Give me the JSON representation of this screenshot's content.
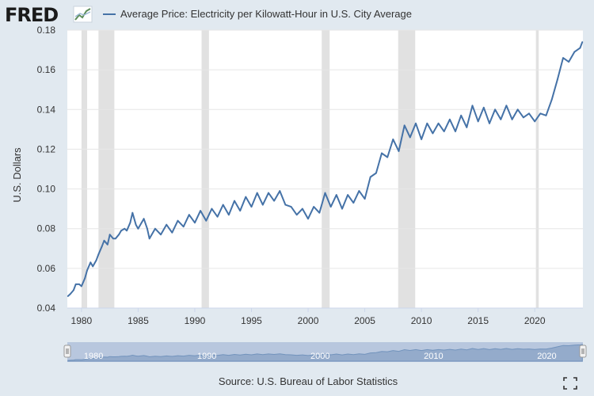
{
  "brand": {
    "logo_text": "FRED"
  },
  "legend": {
    "label": "Average Price: Electricity per Kilowatt-Hour in U.S. City Average"
  },
  "source": {
    "label": "Source: U.S. Bureau of Labor Statistics"
  },
  "navigator": {
    "tick_labels": [
      "1980",
      "1990",
      "2000",
      "2010",
      "2020"
    ]
  },
  "colors": {
    "series": "#4572a7",
    "background": "#e1e9f0",
    "plot_background": "#ffffff",
    "recession": "#e1e1e1",
    "navigator": "#afc0d9"
  },
  "icons": {
    "expand": "fullscreen-icon",
    "handles": "navigator-handle-icon"
  },
  "chart_data": {
    "type": "line",
    "title": "Average Price: Electricity per Kilowatt-Hour in U.S. City Average",
    "xlabel": "",
    "ylabel": "U.S. Dollars",
    "xlim": [
      1978.75,
      2024.25
    ],
    "ylim": [
      0.04,
      0.18
    ],
    "x_ticks": [
      1980,
      1985,
      1990,
      1995,
      2000,
      2005,
      2010,
      2015,
      2020
    ],
    "y_ticks": [
      "0.04",
      "0.06",
      "0.08",
      "0.10",
      "0.12",
      "0.14",
      "0.16",
      "0.18"
    ],
    "grid": true,
    "legend_position": "top-left",
    "recessions": [
      [
        1980.0,
        1980.5
      ],
      [
        1981.5,
        1982.9
      ],
      [
        1990.6,
        1991.25
      ],
      [
        2001.2,
        2001.9
      ],
      [
        2007.95,
        2009.45
      ],
      [
        2020.1,
        2020.35
      ]
    ],
    "series": [
      {
        "name": "Average Price: Electricity per Kilowatt-Hour in U.S. City Average",
        "x": [
          1978.8,
          1979.0,
          1979.3,
          1979.5,
          1979.8,
          1980.0,
          1980.3,
          1980.5,
          1980.8,
          1981.0,
          1981.3,
          1981.5,
          1981.8,
          1982.0,
          1982.3,
          1982.5,
          1982.8,
          1983.0,
          1983.3,
          1983.5,
          1983.8,
          1984.0,
          1984.3,
          1984.5,
          1984.8,
          1985.0,
          1985.3,
          1985.5,
          1985.8,
          1986.0,
          1986.5,
          1987.0,
          1987.5,
          1988.0,
          1988.5,
          1989.0,
          1989.5,
          1990.0,
          1990.5,
          1991.0,
          1991.5,
          1992.0,
          1992.5,
          1993.0,
          1993.5,
          1994.0,
          1994.5,
          1995.0,
          1995.5,
          1996.0,
          1996.5,
          1997.0,
          1997.5,
          1998.0,
          1998.5,
          1999.0,
          1999.5,
          2000.0,
          2000.5,
          2001.0,
          2001.5,
          2002.0,
          2002.5,
          2003.0,
          2003.5,
          2004.0,
          2004.5,
          2005.0,
          2005.5,
          2006.0,
          2006.5,
          2007.0,
          2007.5,
          2008.0,
          2008.5,
          2009.0,
          2009.5,
          2010.0,
          2010.5,
          2011.0,
          2011.5,
          2012.0,
          2012.5,
          2013.0,
          2013.5,
          2014.0,
          2014.5,
          2015.0,
          2015.5,
          2016.0,
          2016.5,
          2017.0,
          2017.5,
          2018.0,
          2018.5,
          2019.0,
          2019.5,
          2020.0,
          2020.5,
          2021.0,
          2021.5,
          2022.0,
          2022.5,
          2023.0,
          2023.5,
          2024.0,
          2024.2
        ],
        "values": [
          0.046,
          0.047,
          0.049,
          0.052,
          0.052,
          0.051,
          0.055,
          0.059,
          0.063,
          0.061,
          0.064,
          0.067,
          0.071,
          0.074,
          0.072,
          0.077,
          0.075,
          0.075,
          0.077,
          0.079,
          0.08,
          0.079,
          0.083,
          0.088,
          0.082,
          0.08,
          0.083,
          0.085,
          0.08,
          0.075,
          0.08,
          0.077,
          0.082,
          0.078,
          0.084,
          0.081,
          0.087,
          0.083,
          0.089,
          0.084,
          0.09,
          0.086,
          0.092,
          0.087,
          0.094,
          0.089,
          0.096,
          0.091,
          0.098,
          0.092,
          0.098,
          0.094,
          0.099,
          0.092,
          0.091,
          0.087,
          0.09,
          0.085,
          0.091,
          0.088,
          0.098,
          0.091,
          0.097,
          0.09,
          0.097,
          0.093,
          0.099,
          0.095,
          0.106,
          0.108,
          0.118,
          0.116,
          0.125,
          0.119,
          0.132,
          0.126,
          0.133,
          0.125,
          0.133,
          0.128,
          0.133,
          0.129,
          0.135,
          0.129,
          0.137,
          0.131,
          0.142,
          0.134,
          0.141,
          0.133,
          0.14,
          0.135,
          0.142,
          0.135,
          0.14,
          0.136,
          0.138,
          0.134,
          0.138,
          0.137,
          0.145,
          0.155,
          0.166,
          0.164,
          0.169,
          0.171,
          0.174
        ]
      }
    ]
  }
}
